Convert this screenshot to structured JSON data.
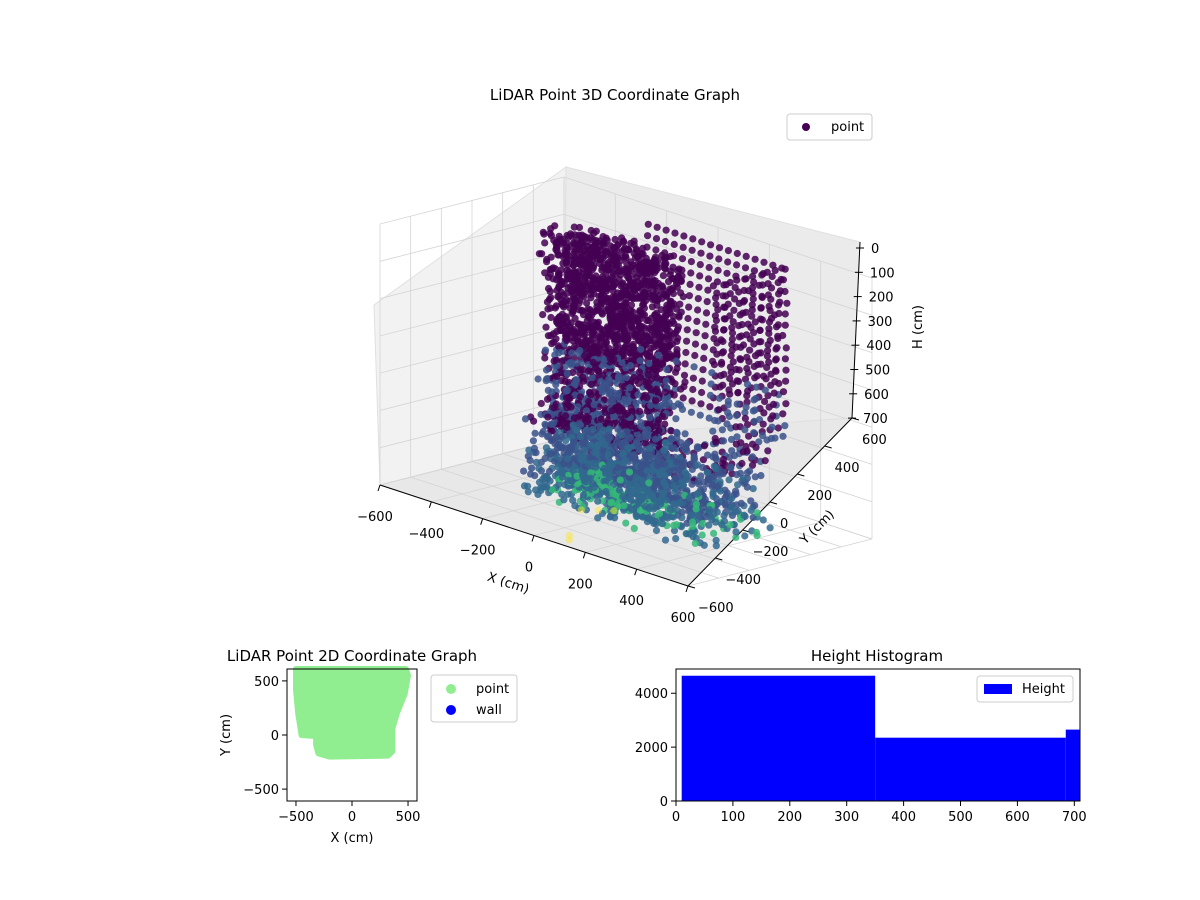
{
  "colors": {
    "cloud_low": "#440154",
    "cloud_mid": "#31688e",
    "cloud_high": "#35b779",
    "cloud_outlier": "#fde725",
    "point_2d": "#90ee90",
    "wall_2d": "#0000ff",
    "histogram": "#0000ff"
  },
  "chart_data": [
    {
      "type": "scatter",
      "projection": "3d",
      "title": "LiDAR Point 3D Coordinate Graph",
      "xlabel": "X (cm)",
      "ylabel": "Y (cm)",
      "zlabel": "H (cm)",
      "xlim": [
        -600,
        600
      ],
      "ylim": [
        -600,
        600
      ],
      "zlim": [
        700,
        0
      ],
      "xticks": [
        "−600",
        "−400",
        "−200",
        "0",
        "200",
        "400",
        "600"
      ],
      "yticks": [
        "−600",
        "−400",
        "−200",
        "0",
        "200",
        "400",
        "600"
      ],
      "zticks": [
        "0",
        "100",
        "200",
        "300",
        "400",
        "500",
        "600",
        "700"
      ],
      "z_inverted": true,
      "colormap": "viridis",
      "legend": {
        "location": "upper right",
        "entries": [
          "point"
        ]
      },
      "grid": true,
      "point_cloud": {
        "columns": {
          "x_start": -140,
          "x_end": 380,
          "count": 16,
          "top_y": 380,
          "height_range": [
            0,
            450
          ]
        },
        "front_wall": {
          "x_range": [
            -300,
            150
          ],
          "y_range": [
            -80,
            150
          ],
          "height_range": [
            0,
            700
          ]
        },
        "floor": {
          "x_range": [
            -300,
            400
          ],
          "y_range": [
            -200,
            300
          ],
          "height_range": [
            480,
            700
          ]
        },
        "outliers": [
          {
            "x": -60,
            "y": -80,
            "h": 700
          },
          {
            "x": -90,
            "y": -140,
            "h": 700
          },
          {
            "x": -30,
            "y": -30,
            "h": 700
          },
          {
            "x": 60,
            "y": -470,
            "h": 700
          },
          {
            "x": 90,
            "y": -520,
            "h": 700
          }
        ]
      }
    },
    {
      "type": "scatter",
      "projection": "2d",
      "title": "LiDAR Point 2D Coordinate Graph",
      "xlabel": "X (cm)",
      "ylabel": "Y (cm)",
      "xlim": [
        -580,
        580
      ],
      "ylim": [
        -610,
        610
      ],
      "xticks": [
        "−500",
        "0",
        "500"
      ],
      "xtick_values": [
        -500,
        0,
        500
      ],
      "yticks": [
        "−500",
        "0",
        "500"
      ],
      "ytick_values": [
        -500,
        0,
        500
      ],
      "legend": {
        "location": "outside upper right",
        "entries": [
          "point",
          "wall"
        ]
      },
      "series": [
        {
          "name": "point",
          "outline": [
            [
              -500,
              610
            ],
            [
              480,
              610
            ],
            [
              500,
              550
            ],
            [
              470,
              380
            ],
            [
              400,
              200
            ],
            [
              360,
              60
            ],
            [
              360,
              -150
            ],
            [
              320,
              -190
            ],
            [
              -200,
              -200
            ],
            [
              -300,
              -170
            ],
            [
              -320,
              -90
            ],
            [
              -320,
              -10
            ],
            [
              -450,
              0
            ],
            [
              -480,
              200
            ],
            [
              -500,
              420
            ]
          ]
        },
        {
          "name": "wall",
          "outline": []
        }
      ]
    },
    {
      "type": "bar",
      "title": "Height Histogram",
      "xlabel": "",
      "ylabel": "",
      "xlim": [
        0,
        710
      ],
      "ylim": [
        0,
        4900
      ],
      "xticks": [
        "0",
        "100",
        "200",
        "300",
        "400",
        "500",
        "600",
        "700"
      ],
      "xtick_values": [
        0,
        100,
        200,
        300,
        400,
        500,
        600,
        700
      ],
      "yticks": [
        "0",
        "2000",
        "4000"
      ],
      "ytick_values": [
        0,
        2000,
        4000
      ],
      "legend": {
        "location": "upper right",
        "entries": [
          "Height"
        ]
      },
      "series": [
        {
          "name": "Height",
          "bins": [
            [
              10,
              350,
              4650
            ],
            [
              350,
              685,
              2350
            ],
            [
              685,
              710,
              2650
            ]
          ]
        }
      ]
    }
  ]
}
